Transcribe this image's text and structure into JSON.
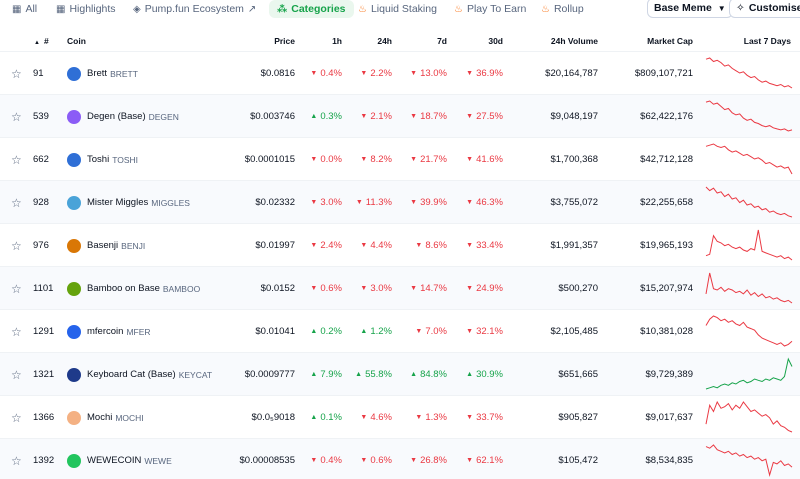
{
  "tabs": [
    {
      "label": "All",
      "icon": "grid-icon"
    },
    {
      "label": "Highlights",
      "icon": "grid-icon"
    },
    {
      "label": "Pump.fun Ecosystem",
      "icon": "tag-icon"
    },
    {
      "label": "Categories",
      "icon": "categories-icon"
    },
    {
      "label": "Liquid Staking",
      "icon": "flame-icon"
    },
    {
      "label": "Play To Earn",
      "icon": "flame-icon"
    },
    {
      "label": "Rollup",
      "icon": "flame-icon"
    }
  ],
  "filter": {
    "label": "Base Meme"
  },
  "customise": {
    "label": "Customise"
  },
  "columns": {
    "rank": "#",
    "coin": "Coin",
    "price": "Price",
    "h1": "1h",
    "h24": "24h",
    "d7": "7d",
    "d30": "30d",
    "volume": "24h Volume",
    "mcap": "Market Cap",
    "spark": "Last 7 Days"
  },
  "colors": {
    "up": "#16a34a",
    "down": "#ea3943"
  },
  "rows": [
    {
      "rank": "91",
      "name": "Brett",
      "symbol": "BRETT",
      "logo_color": "#2f6fd6",
      "price": "$0.0816",
      "h1": "0.4%",
      "h1_dir": "down",
      "h24": "2.2%",
      "h24_dir": "down",
      "d7": "13.0%",
      "d7_dir": "down",
      "d30": "36.9%",
      "d30_dir": "down",
      "volume": "$20,164,787",
      "mcap": "$809,107,721",
      "trend": "down",
      "spark": [
        30,
        31,
        28,
        29,
        27,
        24,
        25,
        22,
        20,
        18,
        19,
        16,
        14,
        15,
        12,
        10,
        11,
        9,
        8,
        7,
        8,
        6,
        7,
        5
      ]
    },
    {
      "rank": "539",
      "name": "Degen (Base)",
      "symbol": "DEGEN",
      "logo_color": "#8b5cf6",
      "price": "$0.003746",
      "h1": "0.3%",
      "h1_dir": "up",
      "h24": "2.1%",
      "h24_dir": "down",
      "d7": "18.7%",
      "d7_dir": "down",
      "d30": "27.5%",
      "d30_dir": "down",
      "volume": "$9,048,197",
      "mcap": "$62,422,176",
      "trend": "down",
      "spark": [
        32,
        33,
        30,
        31,
        28,
        25,
        26,
        22,
        20,
        21,
        17,
        15,
        16,
        13,
        12,
        10,
        9,
        10,
        8,
        7,
        6,
        7,
        5,
        6
      ]
    },
    {
      "rank": "662",
      "name": "Toshi",
      "symbol": "TOSHI",
      "logo_color": "#2f6fd6",
      "price": "$0.0001015",
      "h1": "0.0%",
      "h1_dir": "down",
      "h24": "8.2%",
      "h24_dir": "down",
      "d7": "21.7%",
      "d7_dir": "down",
      "d30": "41.6%",
      "d30_dir": "down",
      "volume": "$1,700,368",
      "mcap": "$42,712,128",
      "trend": "down",
      "spark": [
        30,
        31,
        32,
        30,
        29,
        30,
        27,
        25,
        26,
        24,
        22,
        23,
        21,
        19,
        20,
        18,
        15,
        16,
        14,
        12,
        13,
        11,
        12,
        6
      ]
    },
    {
      "rank": "928",
      "name": "Mister Miggles",
      "symbol": "MIGGLES",
      "logo_color": "#4aa3d8",
      "price": "$0.02332",
      "h1": "3.0%",
      "h1_dir": "down",
      "h24": "11.3%",
      "h24_dir": "down",
      "d7": "39.9%",
      "d7_dir": "down",
      "d30": "46.3%",
      "d30_dir": "down",
      "volume": "$3,755,072",
      "mcap": "$22,255,658",
      "trend": "down",
      "spark": [
        31,
        28,
        30,
        26,
        27,
        23,
        25,
        21,
        22,
        18,
        20,
        16,
        17,
        14,
        15,
        12,
        13,
        10,
        11,
        9,
        8,
        9,
        7,
        6
      ]
    },
    {
      "rank": "976",
      "name": "Basenji",
      "symbol": "BENJI",
      "logo_color": "#d97706",
      "price": "$0.01997",
      "h1": "2.4%",
      "h1_dir": "down",
      "h24": "4.4%",
      "h24_dir": "down",
      "d7": "8.6%",
      "d7_dir": "down",
      "d30": "33.4%",
      "d30_dir": "down",
      "volume": "$1,991,357",
      "mcap": "$19,965,193",
      "trend": "down",
      "spark": [
        12,
        13,
        26,
        22,
        21,
        19,
        20,
        18,
        17,
        18,
        16,
        15,
        17,
        16,
        30,
        15,
        14,
        13,
        12,
        11,
        12,
        10,
        11,
        9
      ]
    },
    {
      "rank": "1101",
      "name": "Bamboo on Base",
      "symbol": "BAMBOO",
      "logo_color": "#65a30d",
      "price": "$0.0152",
      "h1": "0.6%",
      "h1_dir": "down",
      "h24": "3.0%",
      "h24_dir": "down",
      "d7": "14.7%",
      "d7_dir": "down",
      "d30": "24.9%",
      "d30_dir": "down",
      "volume": "$500,270",
      "mcap": "$15,207,974",
      "trend": "down",
      "spark": [
        14,
        30,
        18,
        17,
        19,
        16,
        18,
        17,
        15,
        16,
        14,
        17,
        13,
        15,
        12,
        14,
        11,
        12,
        10,
        11,
        9,
        8,
        9,
        7
      ]
    },
    {
      "rank": "1291",
      "name": "mfercoin",
      "symbol": "MFER",
      "logo_color": "#2563eb",
      "price": "$0.01041",
      "h1": "0.2%",
      "h1_dir": "up",
      "h24": "1.2%",
      "h24_dir": "up",
      "d7": "7.0%",
      "d7_dir": "down",
      "d30": "32.1%",
      "d30_dir": "down",
      "volume": "$2,105,485",
      "mcap": "$10,381,028",
      "trend": "down",
      "spark": [
        22,
        26,
        28,
        27,
        25,
        26,
        24,
        25,
        23,
        22,
        24,
        21,
        20,
        19,
        16,
        14,
        13,
        12,
        11,
        10,
        11,
        9,
        10,
        12
      ]
    },
    {
      "rank": "1321",
      "name": "Keyboard Cat (Base)",
      "symbol": "KEYCAT",
      "logo_color": "#1e3a8a",
      "price": "$0.0009777",
      "h1": "7.9%",
      "h1_dir": "up",
      "h24": "55.8%",
      "h24_dir": "up",
      "d7": "84.8%",
      "d7_dir": "up",
      "d30": "30.9%",
      "d30_dir": "up",
      "volume": "$651,665",
      "mcap": "$9,729,389",
      "trend": "up",
      "spark": [
        6,
        7,
        8,
        7,
        9,
        10,
        9,
        11,
        10,
        12,
        13,
        11,
        12,
        14,
        13,
        12,
        14,
        13,
        15,
        14,
        13,
        16,
        30,
        24
      ]
    },
    {
      "rank": "1366",
      "name": "Mochi",
      "symbol": "MOCHI",
      "logo_color": "#f4b183",
      "price": "$0.0₅9018",
      "h1": "0.1%",
      "h1_dir": "up",
      "h24": "4.6%",
      "h24_dir": "down",
      "d7": "1.3%",
      "d7_dir": "down",
      "d30": "33.7%",
      "d30_dir": "down",
      "volume": "$905,827",
      "mcap": "$9,017,637",
      "trend": "down",
      "spark": [
        14,
        26,
        22,
        28,
        24,
        25,
        27,
        23,
        26,
        24,
        28,
        25,
        22,
        23,
        21,
        19,
        20,
        18,
        14,
        16,
        13,
        12,
        10,
        9
      ]
    },
    {
      "rank": "1392",
      "name": "WEWECOIN",
      "symbol": "WEWE",
      "logo_color": "#22c55e",
      "price": "$0.00008535",
      "h1": "0.4%",
      "h1_dir": "down",
      "h24": "0.6%",
      "h24_dir": "down",
      "d7": "26.8%",
      "d7_dir": "down",
      "d30": "62.1%",
      "d30_dir": "down",
      "volume": "$105,472",
      "mcap": "$8,534,835",
      "trend": "down",
      "spark": [
        30,
        29,
        31,
        28,
        27,
        26,
        27,
        25,
        26,
        24,
        25,
        23,
        24,
        22,
        23,
        21,
        22,
        12,
        20,
        19,
        21,
        18,
        19,
        17
      ]
    }
  ]
}
